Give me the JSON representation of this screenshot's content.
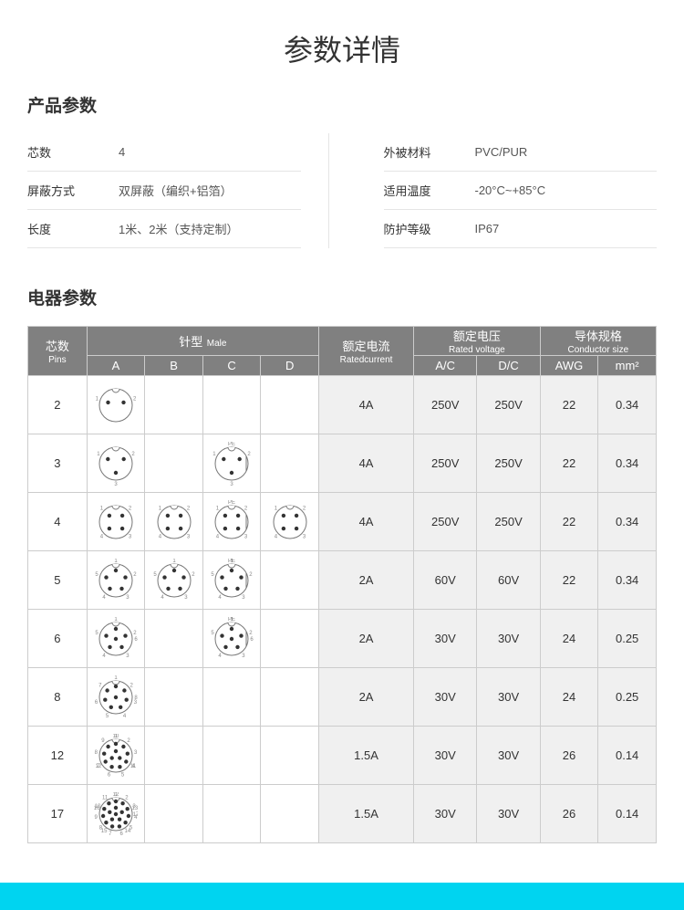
{
  "page_title": "参数详情",
  "product_section_title": "产品参数",
  "elec_section_title": "电器参数",
  "product_params": {
    "left": [
      {
        "label": "芯数",
        "value": "4"
      },
      {
        "label": "屏蔽方式",
        "value": "双屏蔽（编织+铝箔）"
      },
      {
        "label": "长度",
        "value": "1米、2米（支持定制）"
      }
    ],
    "right": [
      {
        "label": "外被材料",
        "value": "PVC/PUR"
      },
      {
        "label": "适用温度",
        "value": "-20°C~+85°C"
      },
      {
        "label": "防护等级",
        "value": "IP67"
      }
    ]
  },
  "headers": {
    "pins_cn": "芯数",
    "pins_en": "Pins",
    "male_cn": "针型",
    "male_en": "Male",
    "male_cols": [
      "A",
      "B",
      "C",
      "D"
    ],
    "rated_current_cn": "额定电流",
    "rated_current_en": "Ratedcurrent",
    "rated_voltage_cn": "额定电压",
    "rated_voltage_en": "Rated voltage",
    "voltage_cols": [
      "A/C",
      "D/C"
    ],
    "conductor_cn": "导体规格",
    "conductor_en": "Conductor size",
    "conductor_cols": [
      "AWG",
      "mm²"
    ]
  },
  "rows": [
    {
      "pins": "2",
      "male": [
        "Y",
        "",
        "",
        ""
      ],
      "current": "4A",
      "ac": "250V",
      "dc": "250V",
      "awg": "22",
      "mm2": "0.34"
    },
    {
      "pins": "3",
      "male": [
        "Y",
        "",
        "Y",
        ""
      ],
      "current": "4A",
      "ac": "250V",
      "dc": "250V",
      "awg": "22",
      "mm2": "0.34"
    },
    {
      "pins": "4",
      "male": [
        "Y",
        "Y",
        "Y",
        "Y"
      ],
      "current": "4A",
      "ac": "250V",
      "dc": "250V",
      "awg": "22",
      "mm2": "0.34"
    },
    {
      "pins": "5",
      "male": [
        "Y",
        "Y",
        "Y",
        ""
      ],
      "current": "2A",
      "ac": "60V",
      "dc": "60V",
      "awg": "22",
      "mm2": "0.34"
    },
    {
      "pins": "6",
      "male": [
        "Y",
        "",
        "Y",
        ""
      ],
      "current": "2A",
      "ac": "30V",
      "dc": "30V",
      "awg": "24",
      "mm2": "0.25"
    },
    {
      "pins": "8",
      "male": [
        "Y",
        "",
        "",
        ""
      ],
      "current": "2A",
      "ac": "30V",
      "dc": "30V",
      "awg": "24",
      "mm2": "0.25"
    },
    {
      "pins": "12",
      "male": [
        "Y",
        "",
        "",
        ""
      ],
      "current": "1.5A",
      "ac": "30V",
      "dc": "30V",
      "awg": "26",
      "mm2": "0.14"
    },
    {
      "pins": "17",
      "male": [
        "Y",
        "",
        "",
        ""
      ],
      "current": "1.5A",
      "ac": "30V",
      "dc": "30V",
      "awg": "26",
      "mm2": "0.14"
    }
  ],
  "connector_style": {
    "outer_stroke": "#777777",
    "dot_fill": "#333333",
    "label_color": "#888888",
    "label_fontsize": 6,
    "pe_label": "PE"
  },
  "footer_color": "#00d4f0"
}
